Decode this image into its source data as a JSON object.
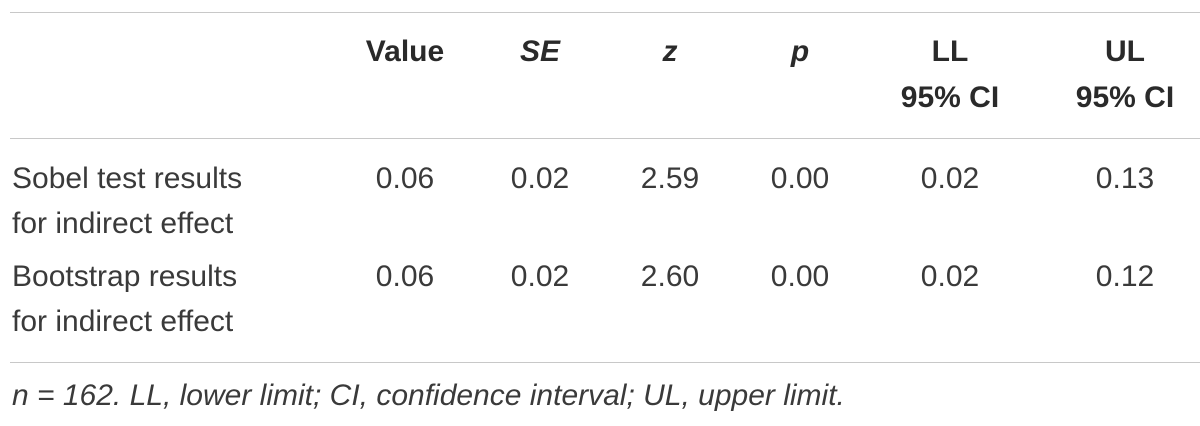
{
  "table": {
    "headers": {
      "value": "Value",
      "se": "SE",
      "z": "z",
      "p": "p",
      "ll_line1": "LL",
      "ll_line2": "95% CI",
      "ul_line1": "UL",
      "ul_line2": "95% CI"
    },
    "rows": [
      {
        "label_line1": "Sobel test results",
        "label_line2": "for indirect effect",
        "value": "0.06",
        "se": "0.02",
        "z": "2.59",
        "p": "0.00",
        "ll": "0.02",
        "ul": "0.13"
      },
      {
        "label_line1": "Bootstrap results",
        "label_line2": "for indirect effect",
        "value": "0.06",
        "se": "0.02",
        "z": "2.60",
        "p": "0.00",
        "ll": "0.02",
        "ul": "0.12"
      }
    ],
    "note": "n = 162. LL, lower limit; CI, confidence interval; UL, upper limit."
  }
}
